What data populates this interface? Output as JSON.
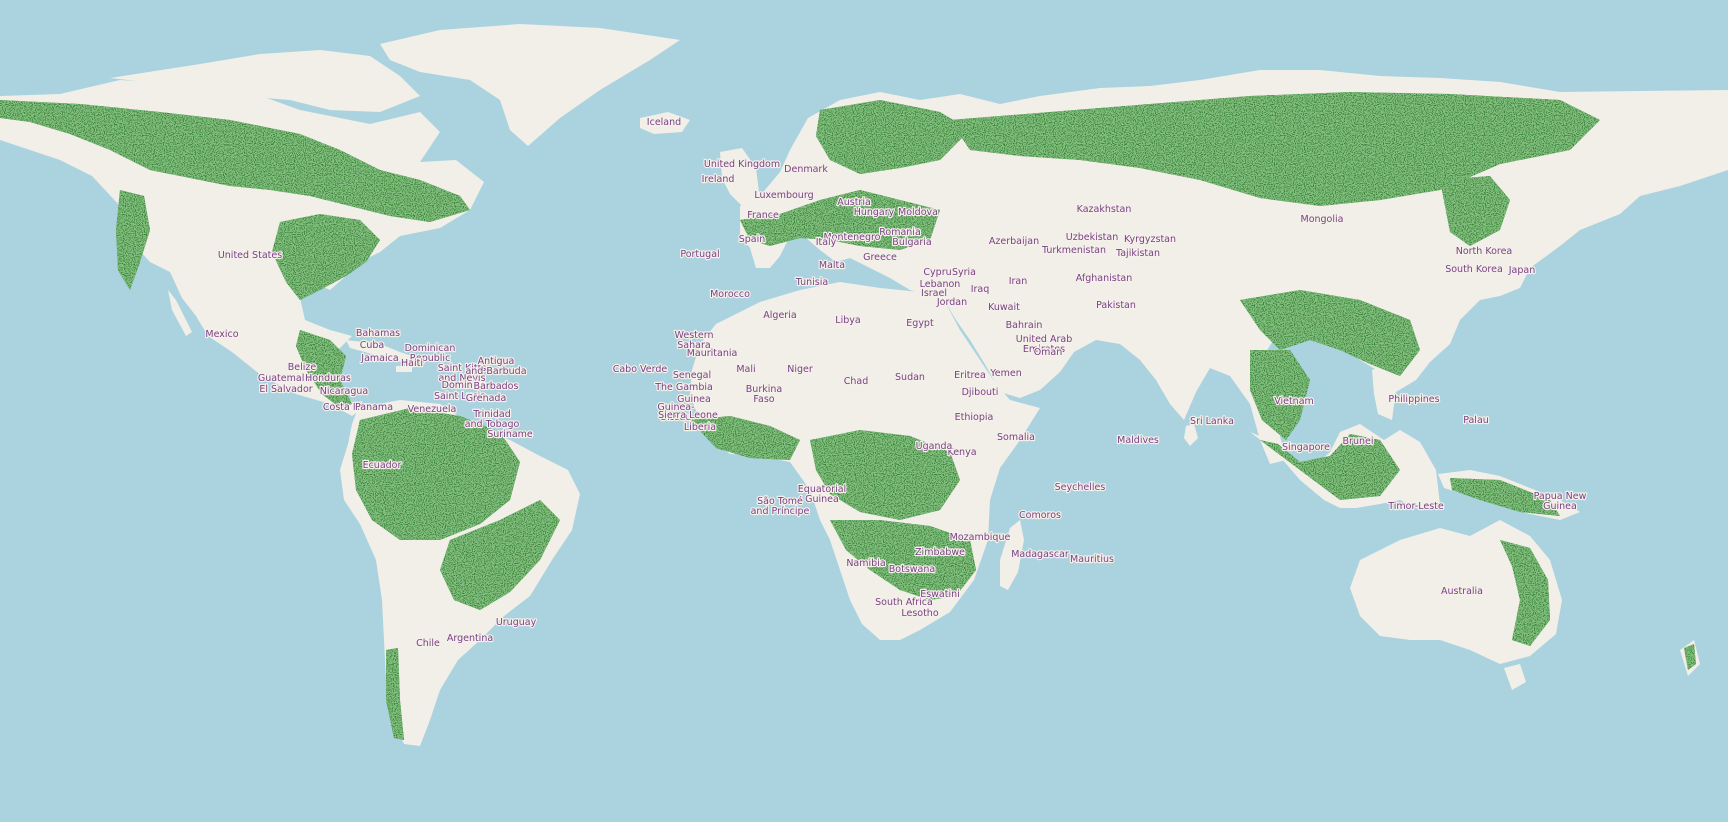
{
  "colors": {
    "water": "#aad3df",
    "land": "#f2efe9",
    "forest": "#3a8537",
    "label": "#7b3f84"
  },
  "map": {
    "layers": [
      "water",
      "land",
      "forest-cover",
      "country-labels"
    ],
    "labels": [
      "Iceland",
      "United Kingdom",
      "Ireland",
      "Denmark",
      "Luxembourg",
      "France",
      "Portugal",
      "Spain",
      "Austria",
      "Hungary",
      "Moldova",
      "Romania",
      "Bulgaria",
      "Montenegro",
      "Italy",
      "Greece",
      "Malta",
      "Tunisia",
      "Morocco",
      "Algeria",
      "Libya",
      "Egypt",
      "Cyprus",
      "Syria",
      "Lebanon",
      "Israel",
      "Jordan",
      "Iraq",
      "Iran",
      "Kuwait",
      "Bahrain",
      "United Arab Emirates",
      "Oman",
      "Yemen",
      "Eritrea",
      "Djibouti",
      "Somalia",
      "Ethiopia",
      "Kenya",
      "Uganda",
      "Seychelles",
      "Comoros",
      "Madagascar",
      "Mauritius",
      "Mozambique",
      "Zimbabwe",
      "Botswana",
      "Namibia",
      "South Africa",
      "Lesotho",
      "Eswatini",
      "Sudan",
      "Chad",
      "Niger",
      "Mali",
      "Mauritania",
      "Western Sahara",
      "Senegal",
      "The Gambia",
      "Guinea",
      "Guinea-Bissau",
      "Sierra Leone",
      "Liberia",
      "Burkina Faso",
      "Cabo Verde",
      "São Tomé and Príncipe",
      "Equatorial Guinea",
      "Kazakhstan",
      "Uzbekistan",
      "Kyrgyzstan",
      "Tajikistan",
      "Turkmenistan",
      "Azerbaijan",
      "Afghanistan",
      "Pakistan",
      "Maldives",
      "Sri Lanka",
      "Mongolia",
      "North Korea",
      "South Korea",
      "Japan",
      "Philippines",
      "Palau",
      "Singapore",
      "Brunei",
      "Timor-Leste",
      "Vietnam",
      "Papua New Guinea",
      "Australia",
      "United States",
      "Mexico",
      "Bahamas",
      "Cuba",
      "Dominican Republic",
      "Haiti",
      "Jamaica",
      "Belize",
      "Guatemala",
      "Honduras",
      "El Salvador",
      "Nicaragua",
      "Costa Rica",
      "Panama",
      "Venezuela",
      "Saint Kitts and Nevis",
      "Antigua and Barbuda",
      "Dominica",
      "Saint Lucia",
      "Barbados",
      "Grenada",
      "Trinidad and Tobago",
      "Suriname",
      "Ecuador",
      "Chile",
      "Argentina",
      "Uruguay"
    ]
  }
}
